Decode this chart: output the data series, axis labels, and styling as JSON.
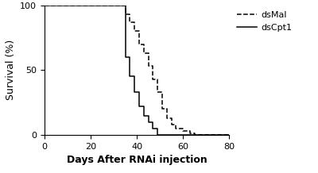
{
  "dsMal_x": [
    0,
    35,
    35,
    37,
    37,
    39,
    39,
    41,
    41,
    43,
    43,
    45,
    45,
    47,
    47,
    49,
    49,
    51,
    51,
    53,
    53,
    55,
    55,
    57,
    57,
    60,
    60,
    63,
    63,
    65,
    65,
    80
  ],
  "dsMal_y": [
    100,
    100,
    93,
    93,
    87,
    87,
    80,
    80,
    70,
    70,
    63,
    63,
    53,
    53,
    43,
    43,
    33,
    33,
    20,
    20,
    13,
    13,
    8,
    8,
    5,
    5,
    3,
    3,
    1,
    1,
    0,
    0
  ],
  "dsCpt1_x": [
    0,
    35,
    35,
    37,
    37,
    39,
    39,
    41,
    41,
    43,
    43,
    45,
    45,
    47,
    47,
    49,
    49,
    51,
    51,
    80
  ],
  "dsCpt1_y": [
    100,
    100,
    60,
    60,
    45,
    45,
    33,
    33,
    22,
    22,
    15,
    15,
    10,
    10,
    5,
    5,
    0,
    0,
    0,
    0
  ],
  "xlabel": "Days After RNAi injection",
  "ylabel": "Survival (%)",
  "xlim": [
    0,
    80
  ],
  "ylim": [
    0,
    100
  ],
  "xticks": [
    0,
    20,
    40,
    60,
    80
  ],
  "yticks": [
    0,
    50,
    100
  ],
  "legend_labels": [
    "dsMal",
    "dsCpt1"
  ],
  "line_color": "#000000",
  "background_color": "#ffffff",
  "fontsize_axis_label": 9,
  "fontsize_tick": 8,
  "fontsize_legend": 8
}
